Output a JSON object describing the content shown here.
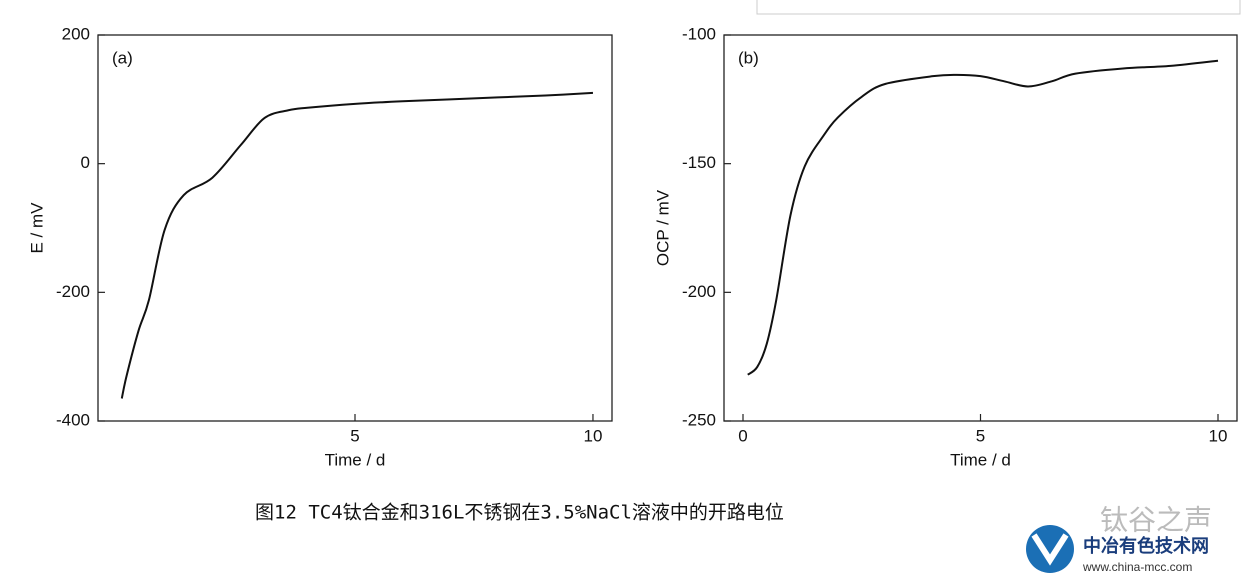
{
  "chart_data": [
    {
      "type": "line",
      "panel_label": "(a)",
      "x_label": "Time / d",
      "y_label": "E / mV",
      "x": [
        0.1,
        0.2,
        0.45,
        0.67,
        1.0,
        1.4,
        2.0,
        2.6,
        3.1,
        3.6,
        4.0,
        5.0,
        6.0,
        7.0,
        8.0,
        9.0,
        10.0
      ],
      "values": [
        -365,
        -330,
        -260,
        -212,
        -103,
        -49,
        -22,
        29,
        71,
        83,
        87,
        93,
        97,
        100,
        103,
        106,
        110
      ],
      "color": "#111111",
      "xlim": [
        -0.4,
        10.4
      ],
      "ylim": [
        -400,
        200
      ],
      "xticks": [
        5,
        10
      ],
      "yticks": [
        -400,
        -200,
        0,
        200
      ]
    },
    {
      "type": "line",
      "panel_label": "(b)",
      "x_label": "Time / d",
      "y_label": "OCP / mV",
      "x": [
        0.1,
        0.3,
        0.5,
        0.7,
        1.0,
        1.3,
        1.7,
        2.0,
        2.5,
        3.0,
        4.0,
        4.5,
        5.0,
        5.5,
        6.0,
        6.5,
        7.0,
        8.0,
        9.0,
        10.0
      ],
      "values": [
        -232,
        -229,
        -220,
        -203,
        -170,
        -151,
        -139,
        -132,
        -124,
        -119,
        -116,
        -115.5,
        -116,
        -118,
        -120,
        -118,
        -115,
        -113,
        -112,
        -110
      ],
      "color": "#111111",
      "xlim": [
        -0.4,
        10.4
      ],
      "ylim": [
        -250,
        -100
      ],
      "xticks": [
        0,
        5,
        10
      ],
      "yticks": [
        -250,
        -200,
        -150,
        -100
      ]
    }
  ],
  "caption": "图12    TC4钛合金和316L不锈钢在3.5%NaCl溶液中的开路电位",
  "watermark": {
    "account": "钛谷之声",
    "site_name": "中冶有色技术网",
    "url": "www.china-mcc.com"
  }
}
